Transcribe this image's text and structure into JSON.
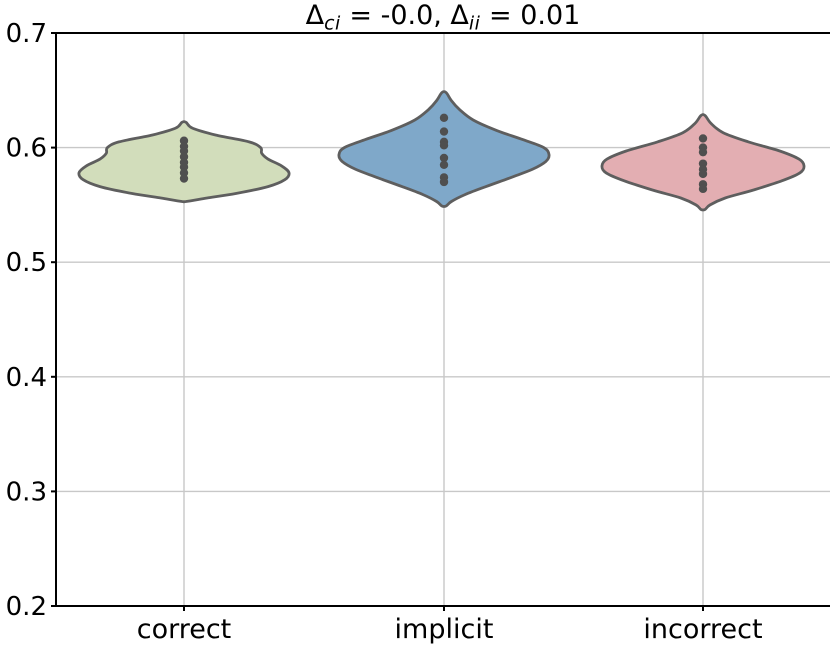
{
  "figure": {
    "title_plain": "Δci = -0.0, Δii = 0.01",
    "title_segments": [
      {
        "text": "Δ"
      },
      {
        "sub": "ci"
      },
      {
        "text": " = -0.0, Δ"
      },
      {
        "sub": "ii"
      },
      {
        "text": " = 0.01"
      }
    ]
  },
  "chart_data": {
    "type": "violin",
    "title": "Δ_ci = -0.0, Δ_ii = 0.01",
    "categories": [
      "correct",
      "implicit",
      "incorrect"
    ],
    "xlabel": "",
    "ylabel": "",
    "ylim": [
      0.2,
      0.7
    ],
    "yticks": [
      0.2,
      0.3,
      0.4,
      0.5,
      0.6,
      0.7
    ],
    "ytick_format_decimals": 1,
    "grid": true,
    "legend": false,
    "colors": {
      "edge": "#5e5e5e",
      "points": "#4f4f4f",
      "grid": "#c8c8c8",
      "spine": "#000000",
      "background": "#ffffff"
    },
    "series": [
      {
        "name": "correct",
        "fill": "#d2ddbb",
        "value_range": [
          0.553,
          0.622
        ],
        "profile": [
          [
            0.622,
            0.02
          ],
          [
            0.617,
            0.08
          ],
          [
            0.611,
            0.3
          ],
          [
            0.605,
            0.62
          ],
          [
            0.6,
            0.73
          ],
          [
            0.595,
            0.74
          ],
          [
            0.59,
            0.8
          ],
          [
            0.584,
            0.93
          ],
          [
            0.578,
            1.0
          ],
          [
            0.572,
            0.96
          ],
          [
            0.566,
            0.8
          ],
          [
            0.56,
            0.5
          ],
          [
            0.556,
            0.22
          ],
          [
            0.553,
            0.02
          ]
        ],
        "points": [
          0.606,
          0.601,
          0.597,
          0.592,
          0.587,
          0.583,
          0.578,
          0.573
        ]
      },
      {
        "name": "implicit",
        "fill": "#7fa8c9",
        "value_range": [
          0.549,
          0.648
        ],
        "profile": [
          [
            0.648,
            0.02
          ],
          [
            0.641,
            0.07
          ],
          [
            0.633,
            0.15
          ],
          [
            0.624,
            0.28
          ],
          [
            0.615,
            0.5
          ],
          [
            0.607,
            0.75
          ],
          [
            0.6,
            0.95
          ],
          [
            0.594,
            1.0
          ],
          [
            0.588,
            0.97
          ],
          [
            0.581,
            0.84
          ],
          [
            0.574,
            0.64
          ],
          [
            0.566,
            0.4
          ],
          [
            0.559,
            0.2
          ],
          [
            0.553,
            0.07
          ],
          [
            0.549,
            0.02
          ]
        ],
        "points": [
          0.626,
          0.614,
          0.605,
          0.602,
          0.591,
          0.585,
          0.574,
          0.57
        ]
      },
      {
        "name": "incorrect",
        "fill": "#e3aeb2",
        "value_range": [
          0.546,
          0.628
        ],
        "profile": [
          [
            0.628,
            0.02
          ],
          [
            0.621,
            0.08
          ],
          [
            0.613,
            0.2
          ],
          [
            0.605,
            0.45
          ],
          [
            0.597,
            0.76
          ],
          [
            0.59,
            0.95
          ],
          [
            0.584,
            1.0
          ],
          [
            0.578,
            0.96
          ],
          [
            0.571,
            0.78
          ],
          [
            0.563,
            0.5
          ],
          [
            0.556,
            0.22
          ],
          [
            0.55,
            0.07
          ],
          [
            0.546,
            0.02
          ]
        ],
        "points": [
          0.608,
          0.6,
          0.596,
          0.586,
          0.581,
          0.577,
          0.568,
          0.564
        ]
      }
    ]
  }
}
